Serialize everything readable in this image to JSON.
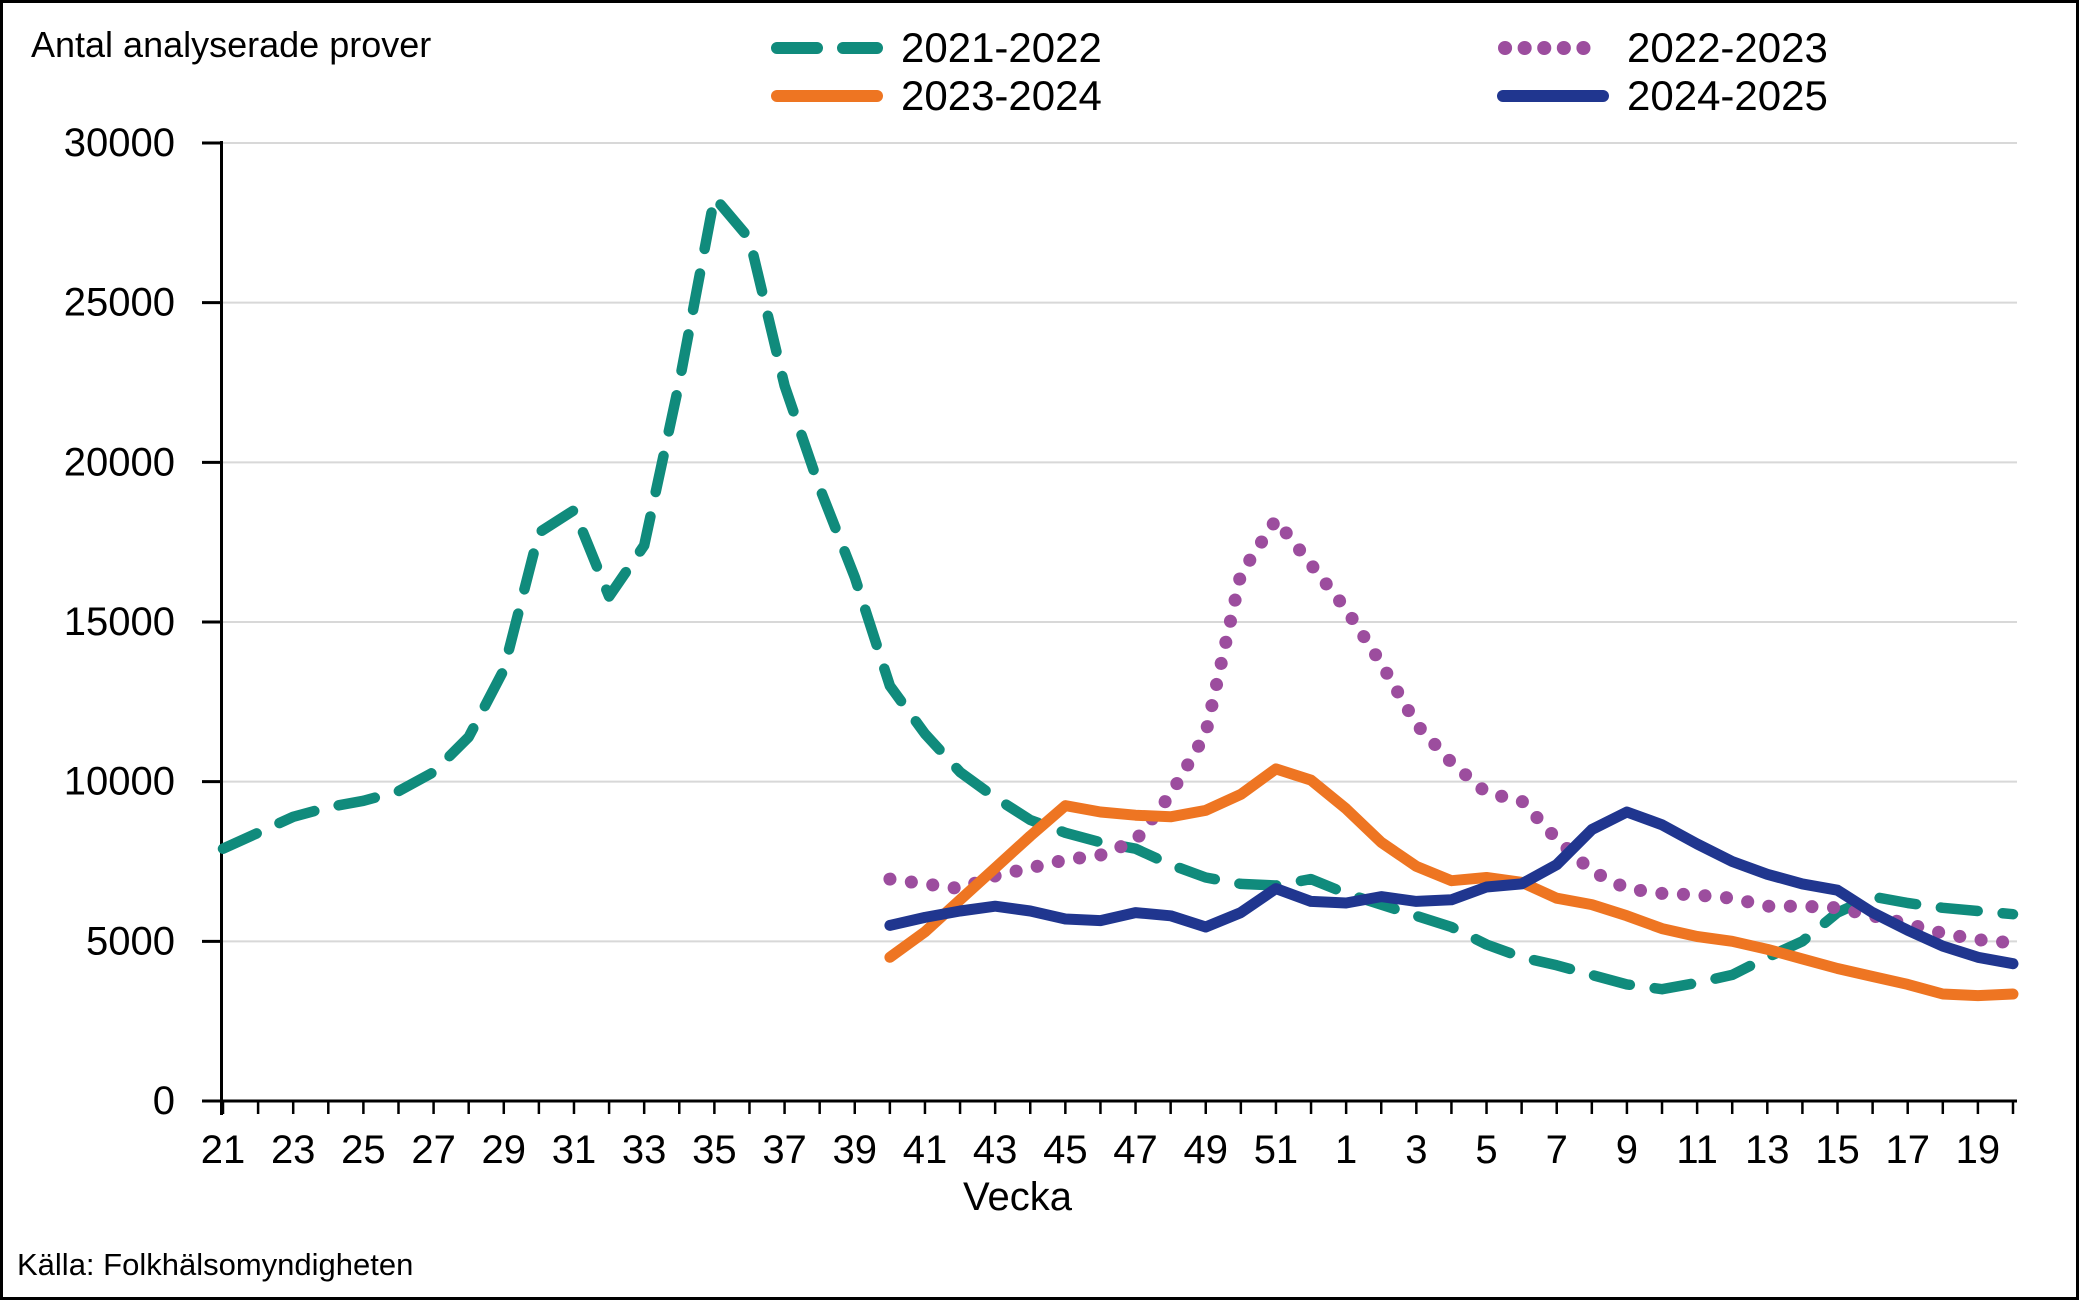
{
  "title": "Antal analyserade prover",
  "xlabel": "Vecka",
  "source": "Källa: Folkhälsomyndigheten",
  "colors": {
    "grid": "#D8D8D8",
    "axis": "#000000",
    "text": "#000000",
    "background": "#FFFFFF"
  },
  "chart_data": {
    "type": "line",
    "title": "Antal analyserade prover",
    "xlabel": "Vecka",
    "ylim": [
      0,
      30000
    ],
    "ytick_step": 5000,
    "grid": "horizontal",
    "legend_position": "top",
    "x_categories": [
      "21",
      "22",
      "23",
      "24",
      "25",
      "26",
      "27",
      "28",
      "29",
      "30",
      "31",
      "32",
      "33",
      "34",
      "35",
      "36",
      "37",
      "38",
      "39",
      "40",
      "41",
      "42",
      "43",
      "44",
      "45",
      "46",
      "47",
      "48",
      "49",
      "50",
      "51",
      "52",
      "1",
      "2",
      "3",
      "4",
      "5",
      "6",
      "7",
      "8",
      "9",
      "10",
      "11",
      "12",
      "13",
      "14",
      "15",
      "16",
      "17",
      "18",
      "19",
      "20"
    ],
    "x_ticklabels": [
      "21",
      "23",
      "25",
      "27",
      "29",
      "31",
      "33",
      "35",
      "37",
      "39",
      "41",
      "43",
      "45",
      "47",
      "49",
      "51",
      "1",
      "3",
      "5",
      "7",
      "9",
      "11",
      "13",
      "15",
      "17",
      "19"
    ],
    "series": [
      {
        "name": "2021-2022",
        "color": "#108B7C",
        "style": "dashed",
        "values": [
          7900,
          8400,
          8900,
          9200,
          9400,
          9700,
          10300,
          11400,
          13500,
          17800,
          18500,
          15800,
          17400,
          22500,
          28300,
          27000,
          22400,
          19200,
          16400,
          13000,
          11500,
          10300,
          9500,
          8800,
          8400,
          8100,
          7900,
          7400,
          7000,
          6800,
          6750,
          6950,
          6500,
          6150,
          5800,
          5450,
          4900,
          4500,
          4250,
          3950,
          3650,
          3500,
          3700,
          3950,
          4500,
          5000,
          5900,
          6400,
          6200,
          6050,
          5950,
          5850
        ]
      },
      {
        "name": "2022-2023",
        "color": "#9C4D9E",
        "style": "dotted",
        "values": [
          null,
          null,
          null,
          null,
          null,
          null,
          null,
          null,
          null,
          null,
          null,
          null,
          null,
          null,
          null,
          null,
          null,
          null,
          null,
          6950,
          6800,
          6650,
          7050,
          7300,
          7550,
          7700,
          8150,
          9600,
          11500,
          16500,
          18200,
          16800,
          15400,
          13700,
          11800,
          10600,
          9650,
          9400,
          8200,
          7200,
          6650,
          6500,
          6450,
          6350,
          6100,
          6100,
          6050,
          5800,
          5550,
          5250,
          5050,
          4950
        ]
      },
      {
        "name": "2023-2024",
        "color": "#EE7522",
        "style": "solid",
        "values": [
          null,
          null,
          null,
          null,
          null,
          null,
          null,
          null,
          null,
          null,
          null,
          null,
          null,
          null,
          null,
          null,
          null,
          null,
          null,
          4500,
          5300,
          6300,
          7300,
          8300,
          9250,
          9050,
          8950,
          8900,
          9100,
          9600,
          10400,
          10050,
          9150,
          8100,
          7350,
          6900,
          7000,
          6850,
          6350,
          6150,
          5800,
          5400,
          5150,
          5000,
          4750,
          4450,
          4150,
          3900,
          3650,
          3350,
          3300,
          3350
        ]
      },
      {
        "name": "2024-2025",
        "color": "#20368F",
        "style": "solid",
        "values": [
          null,
          null,
          null,
          null,
          null,
          null,
          null,
          null,
          null,
          null,
          null,
          null,
          null,
          null,
          null,
          null,
          null,
          null,
          null,
          5500,
          5750,
          5950,
          6100,
          5950,
          5700,
          5650,
          5900,
          5800,
          5450,
          5900,
          6650,
          6250,
          6200,
          6400,
          6250,
          6300,
          6700,
          6800,
          7400,
          8500,
          9050,
          8650,
          8050,
          7500,
          7100,
          6800,
          6600,
          5900,
          5350,
          4850,
          4500,
          4300
        ]
      }
    ]
  }
}
